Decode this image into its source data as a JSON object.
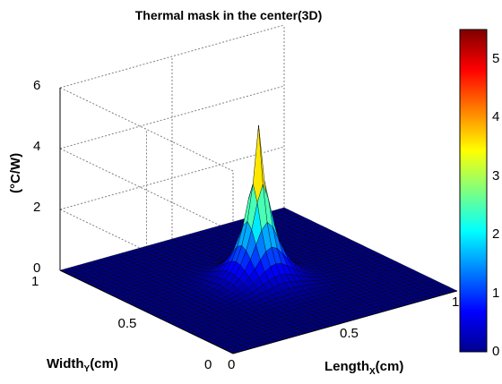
{
  "chart_data": {
    "type": "surface3d",
    "title": "Thermal mask in the center(3D)",
    "xlabel_main": "Length",
    "xlabel_sub": "X",
    "xlabel_unit": "(cm)",
    "ylabel_main": "Width",
    "ylabel_sub": "Y",
    "ylabel_unit": "(cm)",
    "zlabel": "(°C/W)",
    "xlim": [
      0,
      1
    ],
    "ylim": [
      0,
      1
    ],
    "zlim": [
      0,
      6
    ],
    "x_ticks": [
      "0",
      "0.5",
      "1"
    ],
    "y_ticks": [
      "0",
      "0.5",
      "1"
    ],
    "z_ticks": [
      "0",
      "2",
      "4",
      "6"
    ],
    "peak": {
      "x": 0.5,
      "y": 0.5,
      "z": 5.1
    },
    "grid": true,
    "colormap": "jet",
    "colorbar": {
      "range": [
        0,
        5.5
      ],
      "ticks": [
        "0",
        "1",
        "2",
        "3",
        "4",
        "5"
      ]
    },
    "colors": {
      "background": "#ffffff",
      "gridline": "#808080"
    }
  }
}
